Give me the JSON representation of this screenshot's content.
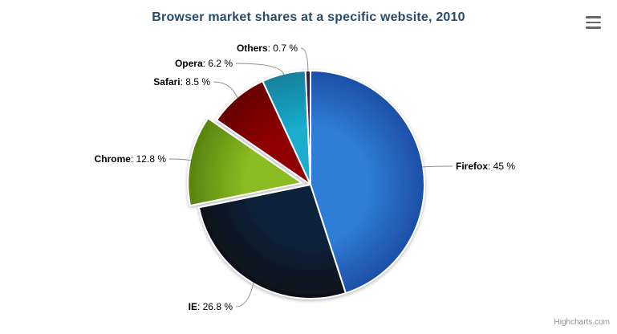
{
  "title": "Browser market shares at a specific website, 2010",
  "credits": "Highcharts.com",
  "ui": {
    "title_color": "#274b6d",
    "label_color": "#000000",
    "connector_color": "#8f8f8f",
    "credits_color": "#909090",
    "menu_icon_color": "#666666",
    "slice_border_color": "#ffffff"
  },
  "chart_data": {
    "type": "pie",
    "title": "Browser market shares at a specific website, 2010",
    "legend": "off",
    "start_angle_deg": 0,
    "slices": [
      {
        "name": "Firefox",
        "value": 45,
        "label_rest": ": 45 %",
        "color": "#2f7ed8",
        "edge_color": "#1d4fa6",
        "sliced": false
      },
      {
        "name": "IE",
        "value": 26.8,
        "label_rest": ": 26.8 %",
        "color": "#0d233a",
        "edge_color": "#071019",
        "sliced": false
      },
      {
        "name": "Chrome",
        "value": 12.8,
        "label_rest": ": 12.8 %",
        "color": "#8bbc21",
        "edge_color": "#57830f",
        "sliced": true
      },
      {
        "name": "Safari",
        "value": 8.5,
        "label_rest": ": 8.5 %",
        "color": "#910000",
        "edge_color": "#650000",
        "sliced": false
      },
      {
        "name": "Opera",
        "value": 6.2,
        "label_rest": ": 6.2 %",
        "color": "#1aadce",
        "edge_color": "#12809c",
        "sliced": false
      },
      {
        "name": "Others",
        "value": 0.7,
        "label_rest": ": 0.7 %",
        "color": "#492970",
        "edge_color": "#2c1945",
        "sliced": false
      }
    ]
  }
}
